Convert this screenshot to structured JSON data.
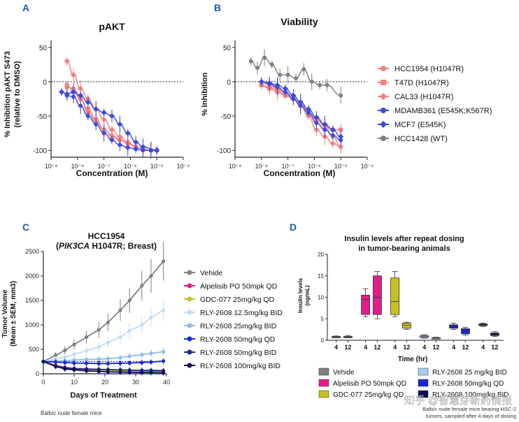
{
  "colors": {
    "accent_letter": "#1f5aa6",
    "salmon": "#f08080",
    "blue": "#3b4bd6",
    "gray": "#808080"
  },
  "chart_data": [
    {
      "panel": "A",
      "type": "scatter",
      "title": "pAKT",
      "xlabel": "Concentration (M)",
      "ylabel": "% Inhibition pAKT S473 (relative to DMSO)",
      "ylabel_line1": "% Inhibition pAKT S473",
      "ylabel_line2": "(relative to  DMSO)",
      "xscale": "log",
      "xlim": [
        1e-09,
        0.0001
      ],
      "ylim": [
        -110,
        60
      ],
      "xticks": [
        "10⁻⁹",
        "10⁻⁸",
        "10⁻⁷",
        "10⁻⁶",
        "10⁻⁵",
        "10⁻⁴"
      ],
      "yticks": [
        "50",
        "0",
        "-50",
        "-100"
      ],
      "ytick_values": [
        50,
        0,
        -50,
        -100
      ],
      "reference_line_y": 0,
      "series": [
        {
          "name": "HCC1954 (H1047R)",
          "color": "#f08080",
          "marker": "circle",
          "x": [
            4e-09,
            7e-09,
            1.3e-08,
            2.5e-08,
            5e-08,
            1e-07,
            2e-07,
            4e-07,
            8e-07,
            1.6e-06,
            3e-06,
            6e-06,
            1e-05
          ],
          "y": [
            -8,
            -10,
            -25,
            -45,
            -58,
            -70,
            -78,
            -85,
            -90,
            -95,
            -98,
            -100,
            -100
          ]
        },
        {
          "name": "T47D (H1047R)",
          "color": "#f08080",
          "marker": "square",
          "x": [
            4e-09,
            7e-09,
            1.3e-08,
            2.5e-08,
            5e-08,
            1e-07,
            2e-07,
            4e-07,
            8e-07,
            1.6e-06,
            3e-06,
            6e-06,
            1e-05
          ],
          "y": [
            -5,
            -15,
            -25,
            -40,
            -55,
            -70,
            -80,
            -85,
            -90,
            -95,
            -98,
            -100,
            -100
          ]
        },
        {
          "name": "CAL33 (H1047R)",
          "color": "#f08080",
          "marker": "diamond",
          "x": [
            4e-09,
            7e-09,
            1.3e-08,
            2.5e-08,
            5e-08,
            1e-07,
            2e-07,
            4e-07,
            8e-07,
            1.6e-06,
            3e-06,
            6e-06,
            1e-05
          ],
          "y": [
            30,
            10,
            -10,
            -25,
            -40,
            -55,
            -70,
            -80,
            -88,
            -95,
            -98,
            -100,
            -100
          ]
        },
        {
          "name": "MDAMB361 (E545K;K567R)",
          "color": "#3b4bd6",
          "marker": "circle",
          "x": [
            4e-09,
            7e-09,
            1.3e-08,
            2.5e-08,
            5e-08,
            1e-07,
            2e-07,
            4e-07,
            8e-07,
            1.6e-06,
            3e-06,
            6e-06,
            1e-05
          ],
          "y": [
            -20,
            -22,
            -35,
            -50,
            -62,
            -75,
            -85,
            -92,
            -96,
            -98,
            -100,
            -100,
            -100
          ]
        },
        {
          "name": "MCF7 (E545K)",
          "color": "#3b4bd6",
          "marker": "diamond",
          "x": [
            2.5e-09,
            4e-09,
            7e-09,
            1.3e-08,
            2.5e-08,
            5e-08,
            1e-07,
            2e-07,
            4e-07,
            8e-07,
            1.6e-06,
            3e-06,
            1e-05
          ],
          "y": [
            -15,
            -18,
            -15,
            -20,
            -30,
            -40,
            -45,
            -50,
            -62,
            -75,
            -88,
            -95,
            -100
          ]
        }
      ]
    },
    {
      "panel": "B",
      "type": "scatter",
      "title": "Viability",
      "xlabel": "Concentration (M)",
      "ylabel": "% Inhibition",
      "xscale": "log",
      "xlim": [
        1e-09,
        0.0001
      ],
      "ylim": [
        -110,
        60
      ],
      "xticks": [
        "10⁻⁹",
        "10⁻⁸",
        "10⁻⁷",
        "10⁻⁶",
        "10⁻⁵",
        "10⁻⁴"
      ],
      "yticks": [
        "50",
        "0",
        "-50",
        "-100"
      ],
      "ytick_values": [
        50,
        0,
        -50,
        -100
      ],
      "reference_line_y": 0,
      "legend": [
        {
          "name": "HCC1954 (H1047R)",
          "color": "#f08080",
          "marker": "circle"
        },
        {
          "name": "T47D (H1047R)",
          "color": "#f08080",
          "marker": "square"
        },
        {
          "name": "CAL33 (H1047R)",
          "color": "#f08080",
          "marker": "diamond"
        },
        {
          "name": "MDAMB361 (E545K;K567R)",
          "color": "#3b4bd6",
          "marker": "circle"
        },
        {
          "name": "MCF7 (E545K)",
          "color": "#3b4bd6",
          "marker": "diamond"
        },
        {
          "name": "HCC1428 (WT)",
          "color": "#808080",
          "marker": "circle"
        }
      ],
      "series": [
        {
          "name": "HCC1954 (H1047R)",
          "color": "#f08080",
          "marker": "circle",
          "x": [
            1e-08,
            2e-08,
            4e-08,
            8e-08,
            1.6e-07,
            3e-07,
            6e-07,
            1.2e-06,
            2.5e-06,
            5e-06,
            1e-05
          ],
          "y": [
            0,
            -5,
            -10,
            -15,
            -25,
            -35,
            -45,
            -55,
            -65,
            -80,
            -95
          ]
        },
        {
          "name": "T47D (H1047R)",
          "color": "#f08080",
          "marker": "square",
          "x": [
            1e-08,
            2e-08,
            4e-08,
            8e-08,
            1.6e-07,
            3e-07,
            6e-07,
            1.2e-06,
            2.5e-06,
            5e-06,
            1e-05
          ],
          "y": [
            -5,
            -10,
            -15,
            -20,
            -25,
            -30,
            -45,
            -55,
            -65,
            -70,
            -70
          ]
        },
        {
          "name": "CAL33 (H1047R)",
          "color": "#f08080",
          "marker": "diamond",
          "x": [
            1e-08,
            2e-08,
            4e-08,
            8e-08,
            1.6e-07,
            3e-07,
            6e-07,
            1.2e-06,
            2.5e-06,
            5e-06,
            1e-05
          ],
          "y": [
            -5,
            -8,
            -12,
            -18,
            -25,
            -35,
            -50,
            -70,
            -80,
            -90,
            -95
          ]
        },
        {
          "name": "MDAMB361 (E545K;K567R)",
          "color": "#3b4bd6",
          "marker": "circle",
          "x": [
            1e-08,
            2e-08,
            4e-08,
            8e-08,
            1.6e-07,
            3e-07,
            6e-07,
            1.2e-06,
            2.5e-06,
            5e-06,
            1e-05
          ],
          "y": [
            0,
            -3,
            -8,
            -15,
            -25,
            -35,
            -45,
            -60,
            -70,
            -78,
            -85
          ]
        },
        {
          "name": "MCF7 (E545K)",
          "color": "#3b4bd6",
          "marker": "diamond",
          "x": [
            1e-08,
            2e-08,
            4e-08,
            8e-08,
            1.6e-07,
            3e-07,
            6e-07,
            1.2e-06,
            2.5e-06,
            5e-06,
            1e-05
          ],
          "y": [
            0,
            -2,
            -5,
            -10,
            -20,
            -30,
            -40,
            -52,
            -62,
            -70,
            -80
          ]
        },
        {
          "name": "HCC1428 (WT)",
          "color": "#808080",
          "marker": "circle",
          "x": [
            4e-09,
            7e-09,
            1.3e-08,
            2.5e-08,
            5e-08,
            1e-07,
            2e-07,
            4e-07,
            8e-07,
            1.6e-06,
            3e-06,
            1e-05
          ],
          "y": [
            30,
            20,
            35,
            25,
            10,
            10,
            5,
            18,
            0,
            -5,
            -5,
            -20
          ]
        }
      ]
    },
    {
      "panel": "C",
      "type": "line",
      "title_line1": "HCC1954",
      "title_italic": "PIK3CA",
      "title_rest": " H1047R; Breast)",
      "title_paren": "(",
      "xlabel": "Days of Treatment",
      "ylabel_line1": "Tumor Volume",
      "ylabel_line2": "(Mean ± SEM, mm3)",
      "xlim": [
        0,
        40
      ],
      "ylim": [
        0,
        2500
      ],
      "xticks": [
        0,
        10,
        20,
        30,
        40
      ],
      "yticks": [
        0,
        500,
        1000,
        1500,
        2000,
        2500
      ],
      "reference_line_y": 250,
      "footnote": "Balb/c nude female mice",
      "x": [
        0,
        4,
        7,
        10,
        14,
        18,
        21,
        25,
        28,
        32,
        35,
        39
      ],
      "series": [
        {
          "name": "Vehide",
          "color": "#808080",
          "y": [
            250,
            380,
            480,
            600,
            750,
            900,
            1050,
            1300,
            1500,
            1800,
            2000,
            2300
          ]
        },
        {
          "name": "Alpelisib PO 50mpk QD",
          "color": "#e01f8a",
          "y": [
            250,
            170,
            130,
            110,
            100,
            90,
            85,
            75,
            65,
            60,
            55,
            55
          ]
        },
        {
          "name": "GDC-077 25mg/kg QD",
          "color": "#c8c020",
          "y": [
            250,
            150,
            120,
            100,
            90,
            80,
            75,
            65,
            50,
            40,
            30,
            25
          ]
        },
        {
          "name": "RLY-2608 12.5mg/kg BID",
          "color": "#c4dbf2",
          "y": [
            250,
            300,
            340,
            400,
            470,
            550,
            640,
            750,
            880,
            1000,
            1150,
            1300
          ]
        },
        {
          "name": "RLY-2608 25mg/kg BID",
          "color": "#8fbde8",
          "y": [
            250,
            260,
            270,
            280,
            290,
            300,
            310,
            330,
            360,
            390,
            420,
            450
          ]
        },
        {
          "name": "RLY-2608 50mg/kg QD",
          "color": "#1a26d6",
          "y": [
            250,
            240,
            230,
            220,
            215,
            210,
            210,
            215,
            220,
            230,
            240,
            260
          ]
        },
        {
          "name": "RLY-2608 50mg/kg BID",
          "color": "#1c2690",
          "y": [
            250,
            160,
            120,
            105,
            95,
            90,
            85,
            80,
            75,
            70,
            70,
            65
          ]
        },
        {
          "name": "RLY-2608 100mg/kg BID",
          "color": "#0e1050",
          "y": [
            250,
            150,
            100,
            80,
            60,
            50,
            40,
            35,
            30,
            25,
            25,
            20
          ]
        }
      ]
    },
    {
      "panel": "D",
      "type": "box",
      "title_line1": "Insulin levels after repeat dosing",
      "title_line2": "in tumor-bearing animals",
      "xlabel": "Time (hr)",
      "ylabel_line1": "Insulin levels",
      "ylabel_line2": "(ng/mL)",
      "ylim": [
        0,
        20
      ],
      "yticks": [
        0,
        5,
        10,
        15,
        20
      ],
      "footnote_line1": "Balb/c nude female mice bearing HSC-2",
      "footnote_line2": "tumors, sampled after 4 days of dosing",
      "groups": [
        {
          "name": "Vehide",
          "color": "#808080",
          "boxes": [
            {
              "time": "4",
              "min": 0.6,
              "q1": 0.7,
              "median": 0.8,
              "q3": 0.9,
              "max": 1.0
            },
            {
              "time": "12",
              "min": 0.6,
              "q1": 0.7,
              "median": 0.8,
              "q3": 0.9,
              "max": 1.1
            }
          ]
        },
        {
          "name": "Alpelisib PO 50mpk QD",
          "color": "#e01f8a",
          "boxes": [
            {
              "time": "4",
              "min": 5.5,
              "q1": 6.0,
              "median": 9.5,
              "q3": 10.5,
              "max": 12.0
            },
            {
              "time": "12",
              "min": 5.0,
              "q1": 6.0,
              "median": 10.0,
              "q3": 15.0,
              "max": 16.0
            }
          ]
        },
        {
          "name": "GDC-077 25mg/kg QD",
          "color": "#c8c020",
          "boxes": [
            {
              "time": "4",
              "min": 5.5,
              "q1": 6.0,
              "median": 9.0,
              "q3": 14.5,
              "max": 16.0
            },
            {
              "time": "12",
              "min": 2.5,
              "q1": 2.8,
              "median": 3.5,
              "q3": 4.0,
              "max": 4.2
            }
          ]
        },
        {
          "name": "RLY-2608 25 mg/kg BID",
          "color": "#a9cdf0",
          "boxes": [
            {
              "time": "4",
              "min": 0.5,
              "q1": 0.6,
              "median": 0.9,
              "q3": 1.1,
              "max": 1.3
            },
            {
              "time": "12",
              "min": 0.3,
              "q1": 0.4,
              "median": 0.5,
              "q3": 0.6,
              "max": 0.7
            }
          ]
        },
        {
          "name": "RLY-2608 50mg/kg QD",
          "color": "#1a26d6",
          "boxes": [
            {
              "time": "4",
              "min": 2.5,
              "q1": 2.8,
              "median": 3.3,
              "q3": 3.6,
              "max": 4.0
            },
            {
              "time": "12",
              "min": 1.2,
              "q1": 1.5,
              "median": 2.2,
              "q3": 2.7,
              "max": 3.0
            }
          ]
        },
        {
          "name": "RLY-2608 100mg/kg BID",
          "color": "#0e1050",
          "boxes": [
            {
              "time": "4",
              "min": 3.2,
              "q1": 3.4,
              "median": 3.6,
              "q3": 3.8,
              "max": 4.0
            },
            {
              "time": "12",
              "min": 0.9,
              "q1": 1.1,
              "median": 1.4,
              "q3": 1.7,
              "max": 2.0
            }
          ]
        }
      ],
      "legend": [
        {
          "name": "Vehide",
          "color": "#808080"
        },
        {
          "name": "Alpelisib PO 50mpk QD",
          "color": "#e01f8a"
        },
        {
          "name": "GDC-077 25mg/kg QD",
          "color": "#c8c020"
        },
        {
          "name": "RLY-2608 25 mg/kg BID",
          "color": "#a9cdf0"
        },
        {
          "name": "RLY-2608 50mg/kg QD",
          "color": "#1a26d6"
        },
        {
          "name": "RLY-2608 100mg/kg BID",
          "color": "#0e1050"
        }
      ]
    }
  ],
  "panel_letters": {
    "a": "A",
    "b": "B",
    "c": "C",
    "d": "D"
  },
  "watermark": "知乎 @智慧芽新药情报"
}
